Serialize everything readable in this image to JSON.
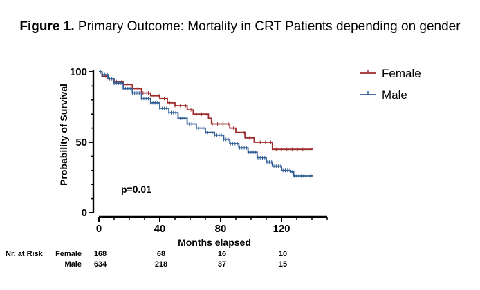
{
  "title": {
    "label": "Figure 1.",
    "text": "Primary Outcome: Mortality in CRT Patients depending on gender"
  },
  "chart_data": {
    "type": "line",
    "subtype": "kaplan-meier-survival",
    "xlabel": "Months elapsed",
    "ylabel": "Probability of Survival",
    "xlim": [
      0,
      150
    ],
    "ylim": [
      0,
      100
    ],
    "xticks": [
      0,
      40,
      80,
      120
    ],
    "yticks": [
      0,
      50,
      100
    ],
    "grid": false,
    "legend_position": "top-right",
    "annotation": "p=0.01",
    "series": [
      {
        "name": "Female",
        "color": "#9e2a2b",
        "points": [
          [
            0,
            100
          ],
          [
            2,
            97
          ],
          [
            6,
            95
          ],
          [
            10,
            93
          ],
          [
            16,
            91
          ],
          [
            22,
            88
          ],
          [
            28,
            85
          ],
          [
            34,
            83
          ],
          [
            40,
            81
          ],
          [
            45,
            78
          ],
          [
            50,
            76
          ],
          [
            58,
            73
          ],
          [
            62,
            70
          ],
          [
            72,
            67
          ],
          [
            74,
            63
          ],
          [
            86,
            60
          ],
          [
            90,
            57
          ],
          [
            96,
            53
          ],
          [
            98,
            53
          ],
          [
            102,
            50
          ],
          [
            112,
            50
          ],
          [
            114,
            45
          ],
          [
            140,
            45
          ],
          [
            140,
            46
          ]
        ]
      },
      {
        "name": "Male",
        "color": "#2f5d95",
        "points": [
          [
            0,
            100
          ],
          [
            2,
            98
          ],
          [
            6,
            95
          ],
          [
            10,
            92
          ],
          [
            16,
            88
          ],
          [
            22,
            85
          ],
          [
            28,
            81
          ],
          [
            34,
            78
          ],
          [
            40,
            74
          ],
          [
            46,
            71
          ],
          [
            52,
            67
          ],
          [
            58,
            63
          ],
          [
            64,
            60
          ],
          [
            70,
            57
          ],
          [
            76,
            55
          ],
          [
            82,
            52
          ],
          [
            86,
            49
          ],
          [
            92,
            46
          ],
          [
            98,
            43
          ],
          [
            104,
            39
          ],
          [
            110,
            36
          ],
          [
            114,
            33
          ],
          [
            120,
            30
          ],
          [
            126,
            29
          ],
          [
            128,
            26
          ],
          [
            140,
            26
          ],
          [
            140,
            27
          ]
        ]
      }
    ]
  },
  "risk_table": {
    "title": "Nr. at Risk",
    "x": [
      0,
      40,
      80,
      120
    ],
    "rows": [
      {
        "label": "Female",
        "values": [
          "168",
          "68",
          "16",
          "10"
        ]
      },
      {
        "label": "Male",
        "values": [
          "634",
          "218",
          "37",
          "15"
        ]
      }
    ]
  }
}
